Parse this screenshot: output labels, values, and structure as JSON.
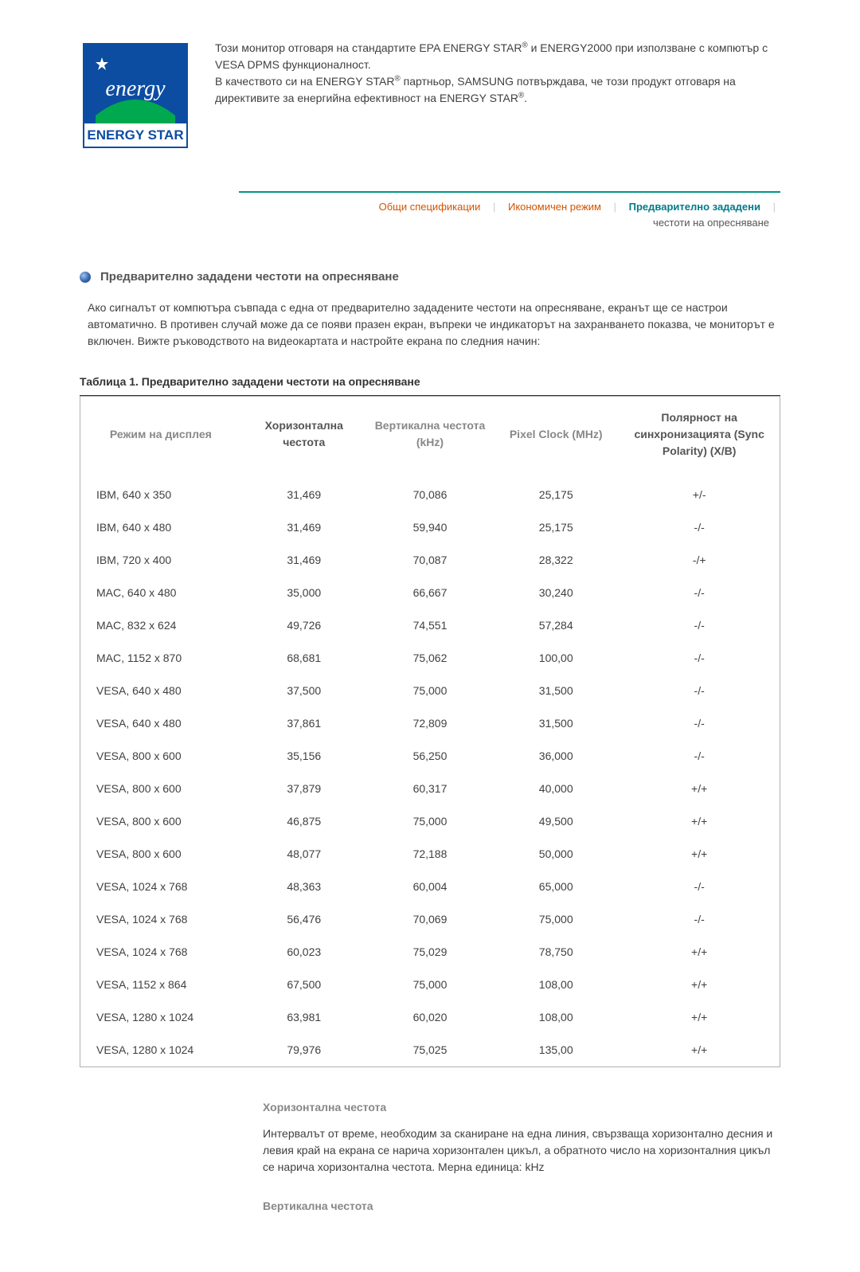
{
  "colors": {
    "logo_blue": "#0c4da2",
    "logo_band_green": "#00a94f",
    "logo_text_white": "#ffffff",
    "tab_border": "#009688",
    "tab_link": "#d35400",
    "tab_active": "#007b8a",
    "tab_sub": "#555555",
    "head_muted": "#888888",
    "head_dark": "#555555",
    "bullet_fill": "#2e5fa3",
    "bullet_shine": "#9fc2f0",
    "table_border": "#b0b0b0",
    "text_body": "#404040"
  },
  "logo": {
    "script": "energy",
    "band": "ENERGY STAR"
  },
  "energy_star": {
    "p1_a": "Този монитор отговаря на стандартите EPA ENERGY STAR",
    "p1_b": " и ENERGY2000 при използване с компютър с VESA DPMS функционалност.",
    "p2_a": "В качеството си на ENERGY STAR",
    "p2_b": " партньор, SAMSUNG потвърждава, че този продукт отговаря на директивите за енергийна ефективност на ENERGY STAR",
    "p2_c": "."
  },
  "tabs": {
    "t1": "Общи спецификации",
    "t2": "Икономичен режим",
    "t3": "Предварително зададени",
    "t3_sub": "честоти на опресняване"
  },
  "section_title": "Предварително зададени честоти на опресняване",
  "section_body": "Ако сигналът от компютъра съвпада с една от предварително зададените честоти на опресняване, екранът ще се настрои автоматично. В противен случай може да се появи празен екран, въпреки че индикаторът на захранването показва, че мониторът е включен. Вижте ръководството на видеокартата и настройте екрана по следния начин:",
  "table": {
    "title": "Таблица 1. Предварително зададени честоти на опресняване",
    "columns": [
      "Режим на дисплея",
      "Хоризонтална честота",
      "Вертикална честота (kHz)",
      "Pixel Clock (MHz)",
      "Полярност на синхронизацията (Sync Polarity) (X/B)"
    ],
    "header_colors": [
      "#888888",
      "#555555",
      "#888888",
      "#888888",
      "#555555"
    ],
    "col_widths": [
      "23%",
      "18%",
      "18%",
      "18%",
      "23%"
    ],
    "rows": [
      [
        "IBM, 640 x 350",
        "31,469",
        "70,086",
        "25,175",
        "+/-"
      ],
      [
        "IBM, 640 x 480",
        "31,469",
        "59,940",
        "25,175",
        "-/-"
      ],
      [
        "IBM, 720 x 400",
        "31,469",
        "70,087",
        "28,322",
        "-/+"
      ],
      [
        "MAC, 640 x 480",
        "35,000",
        "66,667",
        "30,240",
        "-/-"
      ],
      [
        "MAC, 832 x 624",
        "49,726",
        "74,551",
        "57,284",
        "-/-"
      ],
      [
        "MAC, 1152 x 870",
        "68,681",
        "75,062",
        "100,00",
        "-/-"
      ],
      [
        "VESA, 640 x 480",
        "37,500",
        "75,000",
        "31,500",
        "-/-"
      ],
      [
        "VESA, 640 x 480",
        "37,861",
        "72,809",
        "31,500",
        "-/-"
      ],
      [
        "VESA, 800 x 600",
        "35,156",
        "56,250",
        "36,000",
        "-/-"
      ],
      [
        "VESA, 800 x 600",
        "37,879",
        "60,317",
        "40,000",
        "+/+"
      ],
      [
        "VESA, 800 x 600",
        "46,875",
        "75,000",
        "49,500",
        "+/+"
      ],
      [
        "VESA, 800 x 600",
        "48,077",
        "72,188",
        "50,000",
        "+/+"
      ],
      [
        "VESA, 1024 x 768",
        "48,363",
        "60,004",
        "65,000",
        "-/-"
      ],
      [
        "VESA, 1024 x 768",
        "56,476",
        "70,069",
        "75,000",
        "-/-"
      ],
      [
        "VESA, 1024 x 768",
        "60,023",
        "75,029",
        "78,750",
        "+/+"
      ],
      [
        "VESA, 1152 x 864",
        "67,500",
        "75,000",
        "108,00",
        "+/+"
      ],
      [
        "VESA, 1280 x 1024",
        "63,981",
        "60,020",
        "108,00",
        "+/+"
      ],
      [
        "VESA, 1280 x 1024",
        "79,976",
        "75,025",
        "135,00",
        "+/+"
      ]
    ]
  },
  "defs": {
    "h1": "Хоризонтална честота",
    "b1": "Интервалът от време, необходим за сканиране на една линия, свързваща хоризонтално десния и левия край на екрана се нарича хоризонтален цикъл, а обратното число на хоризонталния цикъл се нарича хоризонтална честота. Мерна единица: kHz",
    "h2": "Вертикална честота"
  }
}
